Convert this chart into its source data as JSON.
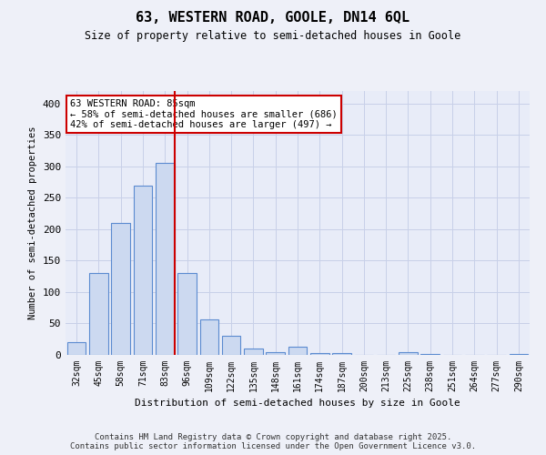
{
  "title1": "63, WESTERN ROAD, GOOLE, DN14 6QL",
  "title2": "Size of property relative to semi-detached houses in Goole",
  "xlabel": "Distribution of semi-detached houses by size in Goole",
  "ylabel": "Number of semi-detached properties",
  "categories": [
    "32sqm",
    "45sqm",
    "58sqm",
    "71sqm",
    "83sqm",
    "96sqm",
    "109sqm",
    "122sqm",
    "135sqm",
    "148sqm",
    "161sqm",
    "174sqm",
    "187sqm",
    "200sqm",
    "213sqm",
    "225sqm",
    "238sqm",
    "251sqm",
    "264sqm",
    "277sqm",
    "290sqm"
  ],
  "values": [
    20,
    130,
    210,
    270,
    305,
    130,
    57,
    30,
    10,
    4,
    13,
    3,
    3,
    0,
    0,
    4,
    2,
    0,
    0,
    0,
    2
  ],
  "bar_color": "#ccd9f0",
  "bar_edge_color": "#5b8bd0",
  "vline_index": 4,
  "vline_color": "#cc0000",
  "annotation_text": "63 WESTERN ROAD: 85sqm\n← 58% of semi-detached houses are smaller (686)\n42% of semi-detached houses are larger (497) →",
  "annotation_box_color": "#ffffff",
  "annotation_box_edge": "#cc0000",
  "ylim": [
    0,
    420
  ],
  "yticks": [
    0,
    50,
    100,
    150,
    200,
    250,
    300,
    350,
    400
  ],
  "grid_color": "#c8d0e8",
  "background_color": "#e8ecf8",
  "fig_background": "#eef0f8",
  "footer": "Contains HM Land Registry data © Crown copyright and database right 2025.\nContains public sector information licensed under the Open Government Licence v3.0."
}
